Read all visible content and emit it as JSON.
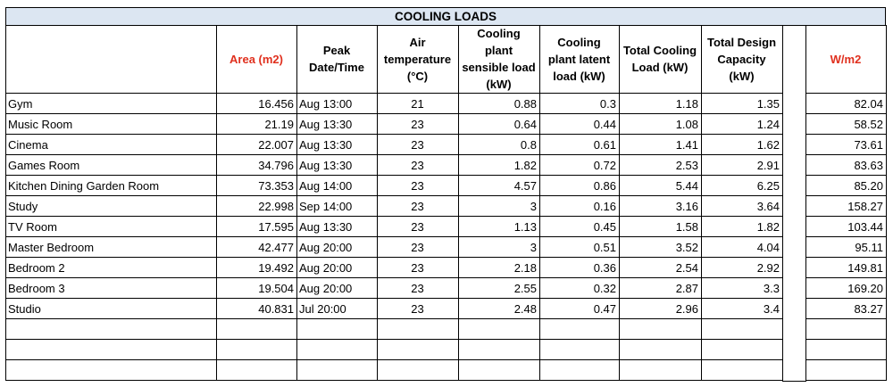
{
  "title": "COOLING LOADS",
  "table": {
    "header": [
      "Area (m2)",
      "Peak Date/Time",
      "Air temperature (°C)",
      "Cooling plant sensible load (kW)",
      "Cooling plant latent load (kW)",
      "Total Cooling Load (kW)",
      "Total Design Capacity (kW)",
      "W/m2"
    ],
    "rows": [
      [
        "Gym",
        "16.456",
        "Aug 13:00",
        "21",
        "0.88",
        "0.3",
        "1.18",
        "1.35",
        "82.04"
      ],
      [
        "Music Room",
        "21.19",
        "Aug 13:30",
        "23",
        "0.64",
        "0.44",
        "1.08",
        "1.24",
        "58.52"
      ],
      [
        "Cinema",
        "22.007",
        "Aug 13:30",
        "23",
        "0.8",
        "0.61",
        "1.41",
        "1.62",
        "73.61"
      ],
      [
        "Games Room",
        "34.796",
        "Aug 13:30",
        "23",
        "1.82",
        "0.72",
        "2.53",
        "2.91",
        "83.63"
      ],
      [
        "Kitchen Dining Garden Room",
        "73.353",
        "Aug 14:00",
        "23",
        "4.57",
        "0.86",
        "5.44",
        "6.25",
        "85.20"
      ],
      [
        "Study",
        "22.998",
        "Sep 14:00",
        "23",
        "3",
        "0.16",
        "3.16",
        "3.64",
        "158.27"
      ],
      [
        "TV Room",
        "17.595",
        "Aug 13:30",
        "23",
        "1.13",
        "0.45",
        "1.58",
        "1.82",
        "103.44"
      ],
      [
        "Master Bedroom",
        "42.477",
        "Aug 20:00",
        "23",
        "3",
        "0.51",
        "3.52",
        "4.04",
        "95.11"
      ],
      [
        "Bedroom 2",
        "19.492",
        "Aug 20:00",
        "23",
        "2.18",
        "0.36",
        "2.54",
        "2.92",
        "149.81"
      ],
      [
        "Bedroom 3",
        "19.504",
        "Aug 20:00",
        "23",
        "2.55",
        "0.32",
        "2.87",
        "3.3",
        "169.20"
      ],
      [
        "Studio",
        "40.831",
        "Jul 20:00",
        "23",
        "2.48",
        "0.47",
        "2.96",
        "3.4",
        "83.27"
      ]
    ]
  }
}
